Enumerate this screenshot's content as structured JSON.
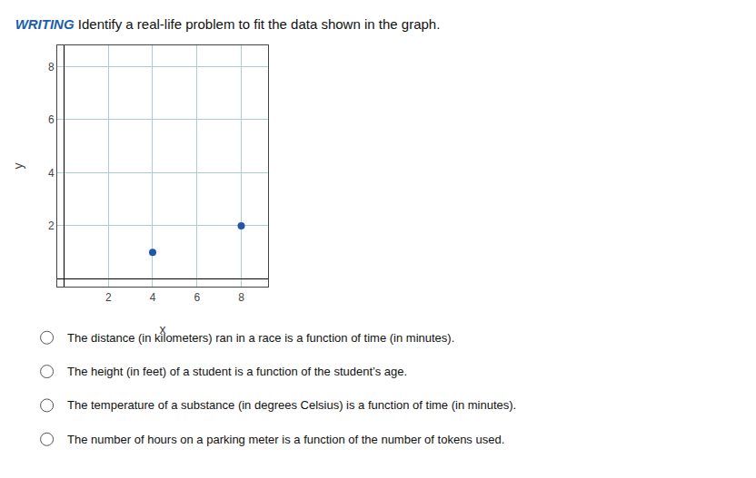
{
  "chart_data": {
    "type": "scatter",
    "title": "WRITING",
    "subtitle": "Identify a real-life problem to fit the data shown in the graph.",
    "x_label": "x",
    "y_label": "y",
    "x": [
      4,
      8
    ],
    "values": [
      1,
      2
    ],
    "color": "#2255aa",
    "marker": "circle",
    "xlim": [
      -0.3,
      9.2
    ],
    "ylim": [
      -0.3,
      8.8
    ],
    "xticks": [
      2,
      4,
      6,
      8
    ],
    "yticks": [
      2,
      4,
      6,
      8
    ],
    "grid": true,
    "annotations": [
      "The distance (in kilometers) ran in a race is a function of time (in minutes).",
      "The height (in feet) of a student is a function of the student’s age.",
      "The temperature of a substance (in degrees Celsius) is a function of time (in minutes).",
      "The number of hours on a parking meter is a function of the number of tokens used."
    ]
  }
}
